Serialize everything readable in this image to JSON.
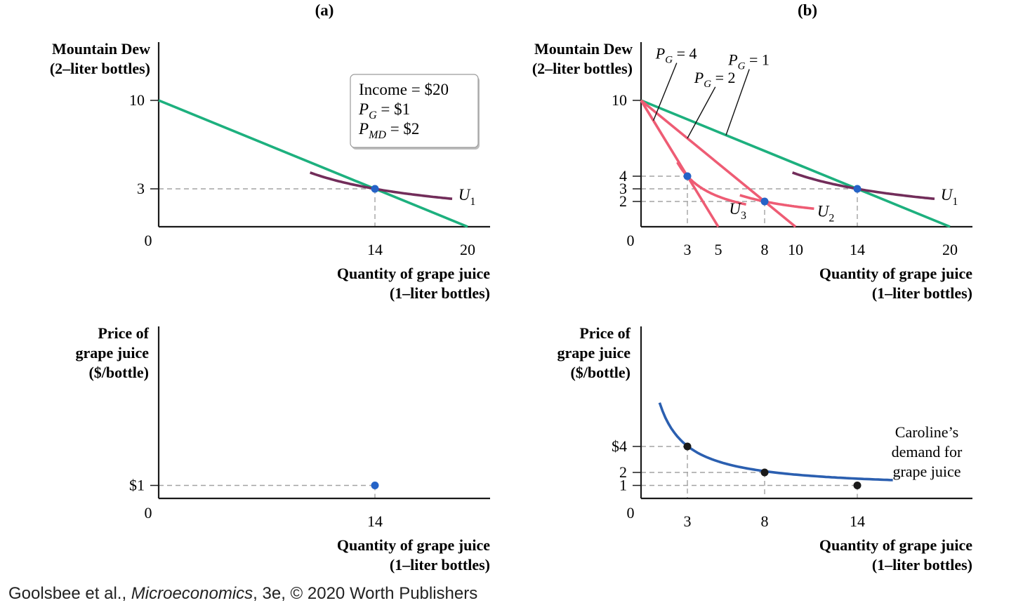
{
  "chart_data": [
    {
      "panel": "(a)",
      "type": "line",
      "ylabel": [
        "Mountain Dew",
        "(2–liter bottles)"
      ],
      "xlabel": [
        "Quantity of grape juice",
        "(1–liter bottles)"
      ],
      "xlim": [
        0,
        21
      ],
      "ylim": [
        0,
        10.5
      ],
      "origin_label": "0",
      "x_ticks": [
        {
          "v": 14,
          "label": "14"
        },
        {
          "v": 20,
          "label": "20"
        }
      ],
      "y_ticks": [
        {
          "v": 10,
          "label": "10"
        },
        {
          "v": 3,
          "label": "3"
        }
      ],
      "budget_lines": [
        {
          "x0": 0,
          "y0": 10,
          "x1": 20,
          "y1": 0,
          "color": "#1db07e"
        }
      ],
      "indifference_curves": [
        {
          "k": 42,
          "xmin": 9.8,
          "xmax": 19.0,
          "label": "U",
          "sub": "1",
          "label_x": 19.4,
          "label_y": 2.1,
          "color": "#722d5a"
        }
      ],
      "points": [
        {
          "x": 14,
          "y": 3,
          "color": "#2563c7"
        }
      ],
      "guides": [
        {
          "x": 14,
          "y": 3
        }
      ],
      "info_box": {
        "line1": "Income = $20",
        "line2_main": "P",
        "line2_sub": "G",
        "line2_rest": " = $1",
        "line3_main": "P",
        "line3_sub": "MD",
        "line3_rest": " = $2"
      }
    },
    {
      "panel": "(b)",
      "type": "line",
      "ylabel": [
        "Mountain Dew",
        "(2–liter bottles)"
      ],
      "xlabel": [
        "Quantity of grape juice",
        "(1–liter bottles)"
      ],
      "xlim": [
        0,
        21
      ],
      "ylim": [
        0,
        10.5
      ],
      "origin_label": "0",
      "x_ticks": [
        {
          "v": 3,
          "label": "3"
        },
        {
          "v": 5,
          "label": "5"
        },
        {
          "v": 8,
          "label": "8"
        },
        {
          "v": 10,
          "label": "10"
        },
        {
          "v": 14,
          "label": "14"
        },
        {
          "v": 20,
          "label": "20"
        }
      ],
      "y_ticks": [
        {
          "v": 10,
          "label": "10"
        },
        {
          "v": 4,
          "label": "4"
        },
        {
          "v": 3,
          "label": "3"
        },
        {
          "v": 2,
          "label": "2"
        }
      ],
      "budget_lines": [
        {
          "x0": 0,
          "y0": 10,
          "x1": 20,
          "y1": 0,
          "color": "#1db07e",
          "label_main": "P",
          "label_sub": "G",
          "label_rest": " = 1",
          "pointer_x": 5.5,
          "label_x": 7.1,
          "label_y": 12.8
        },
        {
          "x0": 0,
          "y0": 10,
          "x1": 10,
          "y1": 0,
          "color": "#ee5c74",
          "label_main": "P",
          "label_sub": "G",
          "label_rest": " = 2",
          "pointer_x": 3.0,
          "label_x": 4.9,
          "label_y": 11.4
        },
        {
          "x0": 0,
          "y0": 10,
          "x1": 5,
          "y1": 0,
          "color": "#ee5c74",
          "label_main": "P",
          "label_sub": "G",
          "label_rest": " = 4",
          "pointer_x": 0.8,
          "label_x": 2.4,
          "label_y": 13.3
        }
      ],
      "indifference_curves": [
        {
          "k": 42,
          "xmin": 9.8,
          "xmax": 19.0,
          "label": "U",
          "sub": "1",
          "label_x": 19.4,
          "label_y": 2.1,
          "color": "#722d5a"
        },
        {
          "k": 16,
          "xmin": 6.4,
          "xmax": 11.2,
          "label": "U",
          "sub": "2",
          "label_x": 11.4,
          "label_y": 0.8,
          "color": "#ee5c74"
        },
        {
          "k": 12,
          "xmin": 2.35,
          "xmax": 6.8,
          "label": "U",
          "sub": "3",
          "label_x": 5.7,
          "label_y": 1.0,
          "color": "#ee5c74"
        }
      ],
      "points": [
        {
          "x": 3,
          "y": 4,
          "color": "#2563c7"
        },
        {
          "x": 8,
          "y": 2,
          "color": "#2563c7"
        },
        {
          "x": 14,
          "y": 3,
          "color": "#2563c7"
        }
      ],
      "guides": [
        {
          "x": 3,
          "y": 4
        },
        {
          "x": 8,
          "y": 2
        },
        {
          "x": 14,
          "y": 3
        }
      ]
    },
    {
      "panel": "(a) lower",
      "type": "scatter",
      "ylabel": [
        "Price of",
        "grape juice",
        "($/bottle)"
      ],
      "xlabel": [
        "Quantity of grape juice",
        "(1–liter bottles)"
      ],
      "xlim": [
        0,
        21
      ],
      "ylim": [
        0,
        13.3
      ],
      "origin_label": "0",
      "x_ticks": [
        {
          "v": 14,
          "label": "14"
        }
      ],
      "y_ticks": [
        {
          "v": 1,
          "label": "$1"
        }
      ],
      "points": [
        {
          "x": 14,
          "y": 1,
          "color": "#2563c7"
        }
      ],
      "guides": [
        {
          "x": 14,
          "y": 1
        }
      ]
    },
    {
      "panel": "(b) lower",
      "type": "line",
      "ylabel": [
        "Price of",
        "grape juice",
        "($/bottle)"
      ],
      "xlabel": [
        "Quantity of grape juice",
        "(1–liter bottles)"
      ],
      "xlim": [
        0,
        21
      ],
      "ylim": [
        0,
        13.3
      ],
      "origin_label": "0",
      "x_ticks": [
        {
          "v": 3,
          "label": "3"
        },
        {
          "v": 8,
          "label": "8"
        },
        {
          "v": 14,
          "label": "14"
        }
      ],
      "y_ticks": [
        {
          "v": 4,
          "label": "$4"
        },
        {
          "v": 2,
          "label": "2"
        },
        {
          "v": 1,
          "label": "1"
        }
      ],
      "demand_curve": {
        "xmin": 1.2,
        "xmax": 16.3,
        "color": "#2b5fb0",
        "label": [
          "Caroline’s",
          "demand for",
          "grape juice"
        ]
      },
      "points": [
        {
          "x": 3,
          "y": 4,
          "color": "#1a1a1a"
        },
        {
          "x": 8,
          "y": 2,
          "color": "#1a1a1a"
        },
        {
          "x": 14,
          "y": 1,
          "color": "#1a1a1a"
        }
      ],
      "guides": [
        {
          "x": 3,
          "y": 4
        },
        {
          "x": 8,
          "y": 2
        },
        {
          "x": 14,
          "y": 1
        }
      ]
    }
  ],
  "credit": {
    "prefix": "Goolsbee et al., ",
    "title": "Microeconomics",
    "suffix": ", 3e, © 2020 Worth Publishers"
  }
}
